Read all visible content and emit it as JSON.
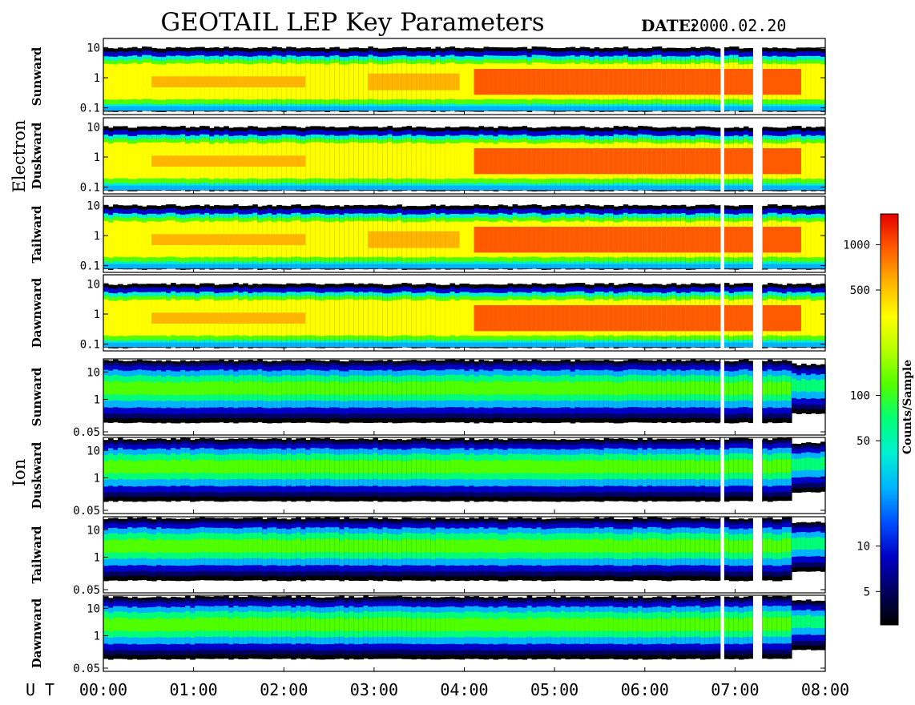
{
  "header": {
    "title": "GEOTAIL LEP Key Parameters",
    "date_label": "DATE:",
    "date_value": "2000.02.20"
  },
  "x_axis": {
    "prefix": "U T",
    "ticks": [
      "00:00",
      "01:00",
      "02:00",
      "03:00",
      "04:00",
      "05:00",
      "06:00",
      "07:00",
      "08:00"
    ],
    "range_hours": [
      0,
      8
    ]
  },
  "groups": [
    {
      "name": "Electron",
      "y_ticks": [
        "10",
        "1",
        "0.1"
      ],
      "y_tick_values": [
        10,
        1,
        0.1
      ],
      "y_range": [
        0.06,
        20
      ],
      "panels": [
        "Sunward",
        "Duskward",
        "Tailward",
        "Dawnward"
      ]
    },
    {
      "name": "Ion",
      "y_ticks": [
        "10",
        "1",
        "0.05"
      ],
      "y_tick_values": [
        10,
        1,
        0.05
      ],
      "y_range": [
        0.05,
        30
      ],
      "panels": [
        "Sunward",
        "Duskward",
        "Tailward",
        "Dawnward"
      ]
    }
  ],
  "colorbar": {
    "label": "Counts/Sample",
    "ticks": [
      "1000",
      "500",
      "100",
      "50",
      "10",
      "5"
    ],
    "tick_values": [
      1000,
      500,
      100,
      50,
      10,
      5
    ],
    "range": [
      3,
      1600
    ],
    "colors": [
      "#000000",
      "#000060",
      "#0000c8",
      "#0050ff",
      "#00b4ff",
      "#00f0d2",
      "#00ff78",
      "#50ff00",
      "#b4ff00",
      "#ffff00",
      "#ffb400",
      "#ff5a00",
      "#e60000"
    ]
  },
  "chart_data": {
    "type": "heatmap",
    "title": "GEOTAIL LEP Key Parameters",
    "xlabel": "U T",
    "x_ticks": [
      "00:00",
      "01:00",
      "02:00",
      "03:00",
      "04:00",
      "05:00",
      "06:00",
      "07:00",
      "08:00"
    ],
    "color_label": "Counts/Sample",
    "data_gaps_hours": [
      [
        6.84,
        6.88
      ],
      [
        7.2,
        7.3
      ]
    ],
    "series": [
      {
        "group": "Electron",
        "direction": "Sunward"
      },
      {
        "group": "Electron",
        "direction": "Duskward"
      },
      {
        "group": "Electron",
        "direction": "Tailward"
      },
      {
        "group": "Electron",
        "direction": "Dawnward"
      },
      {
        "group": "Ion",
        "direction": "Sunward"
      },
      {
        "group": "Ion",
        "direction": "Duskward"
      },
      {
        "group": "Ion",
        "direction": "Tailward"
      },
      {
        "group": "Ion",
        "direction": "Dawnward"
      }
    ]
  }
}
